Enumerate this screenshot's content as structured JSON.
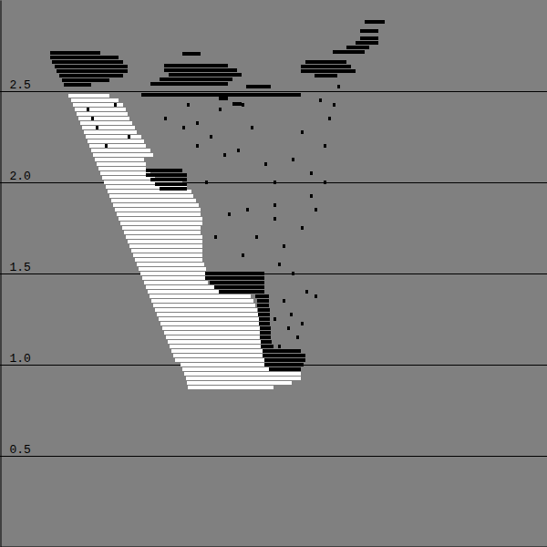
{
  "chart_data": {
    "type": "scatter",
    "xlim": [
      0,
      600
    ],
    "ylim": [
      0,
      3
    ],
    "yticks": [
      0.5,
      {
        "value": 1,
        "label": "1.0"
      },
      1.5,
      {
        "value": 2,
        "label": "2.0"
      },
      2.5
    ],
    "grid": true,
    "tick_labels": "y",
    "series": [
      {
        "color": "#ffffff",
        "x": [
          75,
          78,
          80,
          82,
          84,
          86,
          88,
          90,
          92,
          94,
          96,
          98,
          100,
          102,
          104,
          106,
          108,
          110,
          112,
          114,
          116,
          118,
          120,
          122,
          124,
          126,
          128,
          130,
          132,
          134,
          136,
          138,
          140,
          142,
          144,
          146,
          148,
          150,
          152,
          154,
          156,
          158,
          160,
          162,
          164,
          166,
          168,
          170,
          172,
          174,
          176,
          178,
          180,
          182,
          184,
          186,
          188,
          190,
          192,
          198,
          200,
          202,
          204,
          205,
          206
        ],
        "x_end": [
          120,
          130,
          135,
          138,
          140,
          142,
          145,
          148,
          150,
          155,
          158,
          160,
          165,
          168,
          158,
          160,
          160,
          165,
          170,
          200,
          205,
          210,
          212,
          215,
          218,
          220,
          220,
          222,
          222,
          220,
          220,
          222,
          222,
          222,
          222,
          222,
          222,
          224,
          226,
          226,
          228,
          228,
          270,
          272,
          275,
          278,
          280,
          282,
          284,
          285,
          286,
          287,
          288,
          288,
          290,
          290,
          290,
          290,
          292,
          300,
          320,
          330,
          330,
          320,
          300
        ],
        "values": [
          2.475,
          2.45,
          2.425,
          2.4,
          2.375,
          2.35,
          2.325,
          2.3,
          2.275,
          2.25,
          2.225,
          2.2,
          2.175,
          2.15,
          2.125,
          2.1,
          2.075,
          2.05,
          2.025,
          2.0,
          1.975,
          1.95,
          1.925,
          1.9,
          1.875,
          1.85,
          1.825,
          1.8,
          1.775,
          1.75,
          1.725,
          1.7,
          1.675,
          1.65,
          1.625,
          1.6,
          1.575,
          1.55,
          1.525,
          1.5,
          1.475,
          1.45,
          1.425,
          1.4,
          1.375,
          1.35,
          1.325,
          1.3,
          1.275,
          1.25,
          1.225,
          1.2,
          1.175,
          1.15,
          1.125,
          1.1,
          1.075,
          1.05,
          1.025,
          1.0,
          0.975,
          0.95,
          0.925,
          0.9,
          0.875
        ]
      },
      {
        "color": "#000000",
        "x": [
          55,
          55,
          57,
          60,
          62,
          65,
          68,
          70,
          200,
          180,
          180,
          185,
          175,
          165,
          155,
          270,
          255,
          240,
          335,
          330,
          330,
          345,
          365,
          380,
          390,
          395,
          395,
          400,
          160,
          160,
          165,
          170,
          175,
          225,
          225,
          230,
          235,
          240,
          280,
          282,
          282,
          283,
          283,
          284,
          284,
          285,
          285,
          285,
          286,
          286,
          288,
          288,
          290,
          290,
          295,
          180,
          200,
          215,
          230,
          245,
          260,
          275,
          290,
          300,
          320,
          340,
          355,
          360,
          345,
          330,
          310,
          300,
          270,
          250,
          235,
          225,
          265,
          280,
          305,
          320,
          335,
          345,
          310,
          300,
          315,
          325,
          305,
          320,
          240,
          205,
          265,
          215,
          330,
          350,
          370,
          365,
          340,
          355,
          300,
          318,
          330,
          95,
          105,
          115,
          125,
          140,
          100
        ],
        "x_end": [
          110,
          130,
          135,
          140,
          140,
          135,
          120,
          100,
          220,
          250,
          260,
          265,
          255,
          250,
          330,
          297,
          265,
          250,
          380,
          385,
          390,
          370,
          400,
          405,
          415,
          415,
          415,
          422,
          200,
          205,
          205,
          205,
          205,
          290,
          290,
          290,
          290,
          290,
          295,
          295,
          295,
          296,
          296,
          296,
          296,
          297,
          297,
          297,
          298,
          300,
          330,
          335,
          335,
          333,
          330,
          183,
          203,
          218,
          233,
          248,
          263,
          278,
          293,
          303,
          323,
          343,
          358,
          363,
          348,
          333,
          313,
          303,
          273,
          253,
          238,
          228,
          268,
          283,
          308,
          323,
          338,
          348,
          313,
          303,
          318,
          328,
          308,
          323,
          243,
          208,
          268,
          218,
          333,
          353,
          373,
          368,
          343,
          358,
          303,
          321,
          333,
          98,
          108,
          118,
          128,
          143,
          103
        ],
        "values": [
          2.71,
          2.685,
          2.66,
          2.635,
          2.61,
          2.585,
          2.56,
          2.535,
          2.705,
          2.64,
          2.615,
          2.59,
          2.565,
          2.54,
          2.48,
          2.525,
          2.43,
          2.46,
          2.66,
          2.635,
          2.61,
          2.585,
          2.715,
          2.74,
          2.765,
          2.79,
          2.83,
          2.88,
          2.065,
          2.04,
          2.015,
          1.99,
          1.965,
          1.5,
          1.475,
          1.45,
          1.425,
          1.4,
          1.375,
          1.35,
          1.325,
          1.3,
          1.275,
          1.25,
          1.225,
          1.2,
          1.175,
          1.15,
          1.125,
          1.1,
          1.075,
          1.05,
          1.025,
          1.0,
          0.975,
          2.35,
          2.3,
          2.2,
          2.25,
          2.15,
          2.175,
          2.3,
          2.1,
          2.0,
          2.125,
          2.05,
          2.2,
          2.35,
          1.85,
          1.75,
          1.65,
          1.8,
          1.85,
          1.825,
          1.7,
          2.0,
          1.6,
          1.7,
          1.55,
          1.5,
          1.4,
          1.375,
          1.35,
          1.25,
          1.2,
          1.15,
          1.1,
          1.05,
          2.4,
          2.425,
          2.425,
          2.325,
          2.275,
          2.45,
          2.525,
          2.425,
          1.925,
          2.0,
          1.875,
          1.275,
          1.225,
          2.4,
          2.3,
          2.2,
          2.425,
          2.25,
          2.35
        ]
      }
    ]
  }
}
